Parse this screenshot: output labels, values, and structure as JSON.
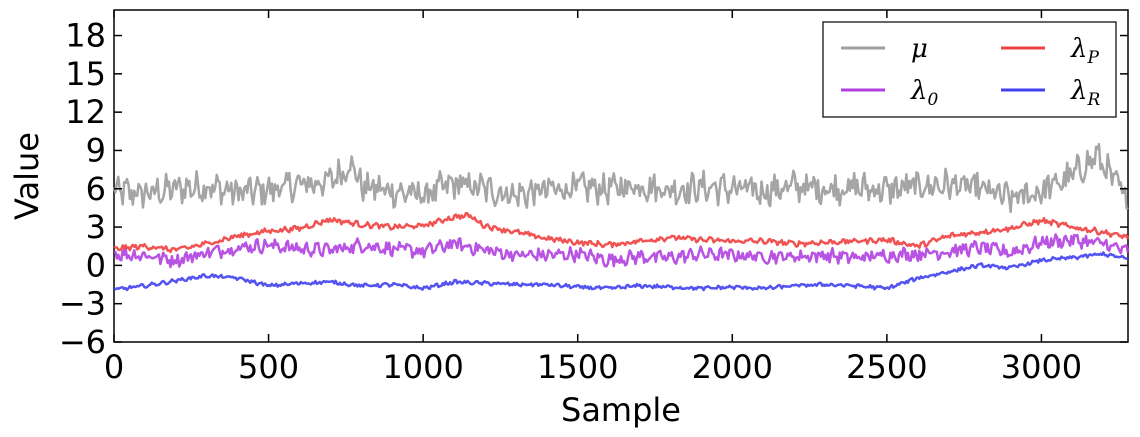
{
  "chart_data": {
    "type": "line",
    "xlabel": "Sample",
    "ylabel": "Value",
    "xlim": [
      0,
      3280
    ],
    "ylim": [
      -6,
      20
    ],
    "xticks": [
      0,
      500,
      1000,
      1500,
      2000,
      2500,
      3000
    ],
    "yticks": [
      -6,
      -3,
      0,
      3,
      6,
      9,
      12,
      15,
      18
    ],
    "xtick_labels": [
      "0",
      "500",
      "1000",
      "1500",
      "2000",
      "2500",
      "3000"
    ],
    "ytick_labels": [
      "−6",
      "−3",
      "0",
      "3",
      "6",
      "9",
      "12",
      "15",
      "18"
    ],
    "grid": false,
    "legend_position": "top-right",
    "legend_columns": 2,
    "series": [
      {
        "name": "μ",
        "color": "#a0a0a0",
        "x": [
          0,
          100,
          200,
          300,
          400,
          500,
          600,
          700,
          770,
          800,
          900,
          1000,
          1100,
          1200,
          1300,
          1400,
          1500,
          1600,
          1700,
          1800,
          1900,
          2000,
          2100,
          2200,
          2300,
          2400,
          2500,
          2600,
          2700,
          2800,
          2900,
          3000,
          3100,
          3180,
          3280
        ],
        "values": [
          5.8,
          5.6,
          6.0,
          6.2,
          5.7,
          5.9,
          6.3,
          6.6,
          8.0,
          6.2,
          5.8,
          5.5,
          6.4,
          6.0,
          5.5,
          5.9,
          6.1,
          6.0,
          6.3,
          5.9,
          6.1,
          6.0,
          5.8,
          6.2,
          6.0,
          6.1,
          5.9,
          6.2,
          6.3,
          6.0,
          5.2,
          5.8,
          7.0,
          8.6,
          5.0
        ]
      },
      {
        "name": "λ0",
        "color": "#b040e0",
        "x": [
          0,
          100,
          200,
          300,
          400,
          500,
          600,
          700,
          800,
          900,
          1000,
          1100,
          1200,
          1300,
          1400,
          1500,
          1600,
          1700,
          1800,
          1900,
          2000,
          2100,
          2200,
          2300,
          2400,
          2500,
          2600,
          2700,
          2800,
          2900,
          3000,
          3100,
          3200,
          3280
        ],
        "values": [
          0.9,
          0.8,
          0.4,
          1.0,
          1.4,
          1.6,
          1.3,
          1.2,
          1.6,
          1.3,
          1.1,
          1.7,
          1.2,
          0.8,
          0.8,
          0.9,
          0.4,
          0.7,
          0.6,
          0.9,
          0.8,
          0.7,
          0.7,
          0.8,
          0.6,
          0.8,
          0.9,
          1.1,
          1.4,
          1.0,
          1.8,
          2.0,
          1.7,
          1.1
        ]
      },
      {
        "name": "λP",
        "color": "#f04040",
        "x": [
          0,
          100,
          200,
          300,
          400,
          500,
          600,
          700,
          800,
          900,
          1000,
          1100,
          1150,
          1200,
          1300,
          1400,
          1500,
          1600,
          1700,
          1800,
          1900,
          2000,
          2100,
          2200,
          2300,
          2400,
          2500,
          2600,
          2700,
          2800,
          2900,
          3000,
          3100,
          3200,
          3280
        ],
        "values": [
          1.3,
          1.5,
          1.2,
          1.7,
          2.3,
          2.7,
          2.9,
          3.6,
          3.2,
          3.0,
          3.1,
          3.8,
          3.9,
          3.1,
          2.6,
          2.1,
          1.8,
          1.6,
          1.9,
          2.2,
          2.0,
          1.9,
          1.9,
          1.7,
          1.8,
          1.9,
          2.0,
          1.5,
          2.3,
          2.6,
          2.9,
          3.5,
          3.0,
          2.6,
          2.2
        ]
      },
      {
        "name": "λR",
        "color": "#4040f0",
        "x": [
          0,
          100,
          200,
          300,
          400,
          500,
          600,
          700,
          800,
          900,
          1000,
          1100,
          1200,
          1300,
          1400,
          1500,
          1600,
          1700,
          1800,
          1900,
          2000,
          2100,
          2200,
          2300,
          2400,
          2500,
          2600,
          2700,
          2800,
          2900,
          3000,
          3100,
          3200,
          3280
        ],
        "values": [
          -1.9,
          -1.6,
          -1.2,
          -0.8,
          -1.0,
          -1.6,
          -1.4,
          -1.3,
          -1.6,
          -1.5,
          -1.8,
          -1.3,
          -1.4,
          -1.5,
          -1.5,
          -1.7,
          -1.8,
          -1.6,
          -1.7,
          -1.8,
          -1.7,
          -1.8,
          -1.6,
          -1.5,
          -1.6,
          -1.8,
          -1.0,
          -0.5,
          0.0,
          -0.2,
          0.4,
          0.6,
          0.9,
          0.5
        ]
      }
    ]
  }
}
